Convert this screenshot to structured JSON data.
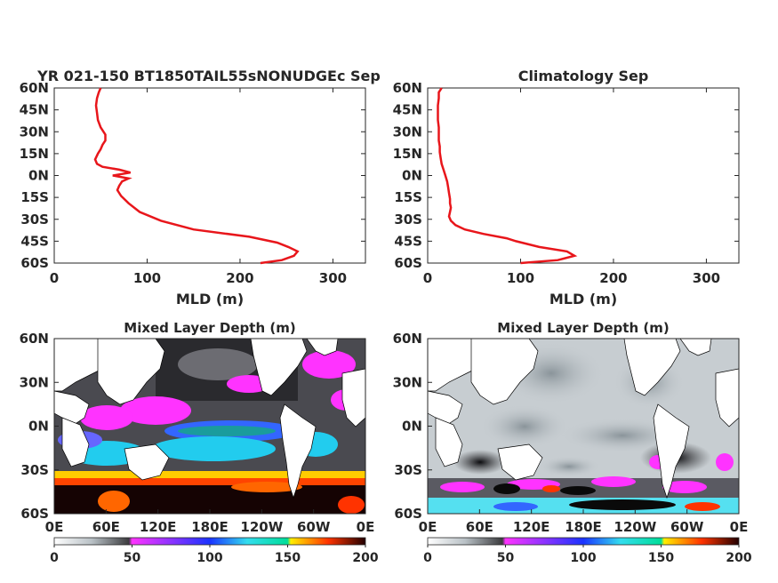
{
  "panels": {
    "top_left": {
      "title": "YR 021-150 BT1850TAIL55sNONUDGEc Sep",
      "xlabel": "MLD (m)",
      "xticks": [
        "0",
        "100",
        "200",
        "300"
      ],
      "yticks": [
        "60N",
        "45N",
        "30N",
        "15N",
        "0N",
        "15S",
        "30S",
        "45S",
        "60S"
      ]
    },
    "top_right": {
      "title": "Climatology Sep",
      "xlabel": "MLD (m)",
      "xticks": [
        "0",
        "100",
        "200",
        "300"
      ],
      "yticks": [
        "60N",
        "45N",
        "30N",
        "15N",
        "0N",
        "15S",
        "30S",
        "45S",
        "60S"
      ]
    },
    "bottom_left": {
      "title": "Mixed Layer Depth (m)",
      "yticks": [
        "60N",
        "30N",
        "0N",
        "30S",
        "60S"
      ],
      "xticks": [
        "0E",
        "60E",
        "120E",
        "180E",
        "120W",
        "60W",
        "0E"
      ],
      "cbar_ticks": [
        "0",
        "50",
        "100",
        "150",
        "200"
      ]
    },
    "bottom_right": {
      "title": "Mixed Layer Depth (m)",
      "yticks": [
        "60N",
        "30N",
        "0N",
        "30S",
        "60S"
      ],
      "xticks": [
        "0E",
        "60E",
        "120E",
        "180E",
        "120W",
        "60W",
        "0E"
      ],
      "cbar_ticks": [
        "0",
        "50",
        "100",
        "150",
        "200"
      ]
    }
  },
  "colors": {
    "line": "#e8161b",
    "axes": "#262626",
    "land": "#ffffff",
    "colormap": [
      "#ffffff",
      "#a7b0b6",
      "#3b3b3e",
      "#ff33ff",
      "#1a66ff",
      "#33ddee",
      "#ffdd00",
      "#ff3300",
      "#220000"
    ]
  },
  "chart_data": [
    {
      "type": "line",
      "title": "YR 021-150 BT1850TAIL55sNONUDGEc Sep",
      "xlabel": "MLD (m)",
      "ylabel": "",
      "xlim": [
        0,
        335
      ],
      "ylim": [
        -60,
        60
      ],
      "x_values_mld": [
        50,
        48,
        46,
        45,
        46,
        47,
        50,
        55,
        55,
        52,
        50,
        47,
        44,
        46,
        52,
        70,
        82,
        63,
        80,
        73,
        70,
        68,
        72,
        80,
        92,
        115,
        150,
        210,
        240,
        252,
        262,
        258,
        245,
        222
      ],
      "y_values_lat": [
        60,
        57,
        53,
        48,
        43,
        38,
        33,
        28,
        24,
        21,
        18,
        15,
        11,
        8,
        6,
        4,
        2,
        0,
        -2,
        -4,
        -7,
        -10,
        -14,
        -19,
        -25,
        -31,
        -37,
        -42,
        -46,
        -49,
        -52,
        -55,
        -58,
        -60
      ]
    },
    {
      "type": "line",
      "title": "Climatology Sep",
      "xlabel": "MLD (m)",
      "ylabel": "",
      "xlim": [
        0,
        335
      ],
      "ylim": [
        -60,
        60
      ],
      "x_values_mld": [
        15,
        12,
        12,
        11,
        11,
        11,
        12,
        12,
        12,
        13,
        13,
        14,
        15,
        17,
        19,
        21,
        22,
        23,
        24,
        24,
        25,
        24,
        23,
        25,
        30,
        40,
        60,
        85,
        95,
        120,
        150,
        158,
        140,
        100
      ],
      "y_values_lat": [
        60,
        57,
        53,
        48,
        43,
        38,
        33,
        28,
        24,
        20,
        16,
        12,
        8,
        4,
        0,
        -4,
        -8,
        -12,
        -16,
        -19,
        -22,
        -25,
        -28,
        -31,
        -34,
        -37,
        -40,
        -43,
        -45,
        -49,
        -52,
        -55,
        -58,
        -60
      ]
    },
    {
      "type": "heatmap",
      "title": "Mixed Layer Depth (m)",
      "colorbar_range": [
        0,
        200
      ],
      "colorbar_ticks": [
        0,
        50,
        100,
        150,
        200
      ]
    },
    {
      "type": "heatmap",
      "title": "Mixed Layer Depth (m)",
      "colorbar_range": [
        0,
        200
      ],
      "colorbar_ticks": [
        0,
        50,
        100,
        150,
        200
      ]
    }
  ]
}
